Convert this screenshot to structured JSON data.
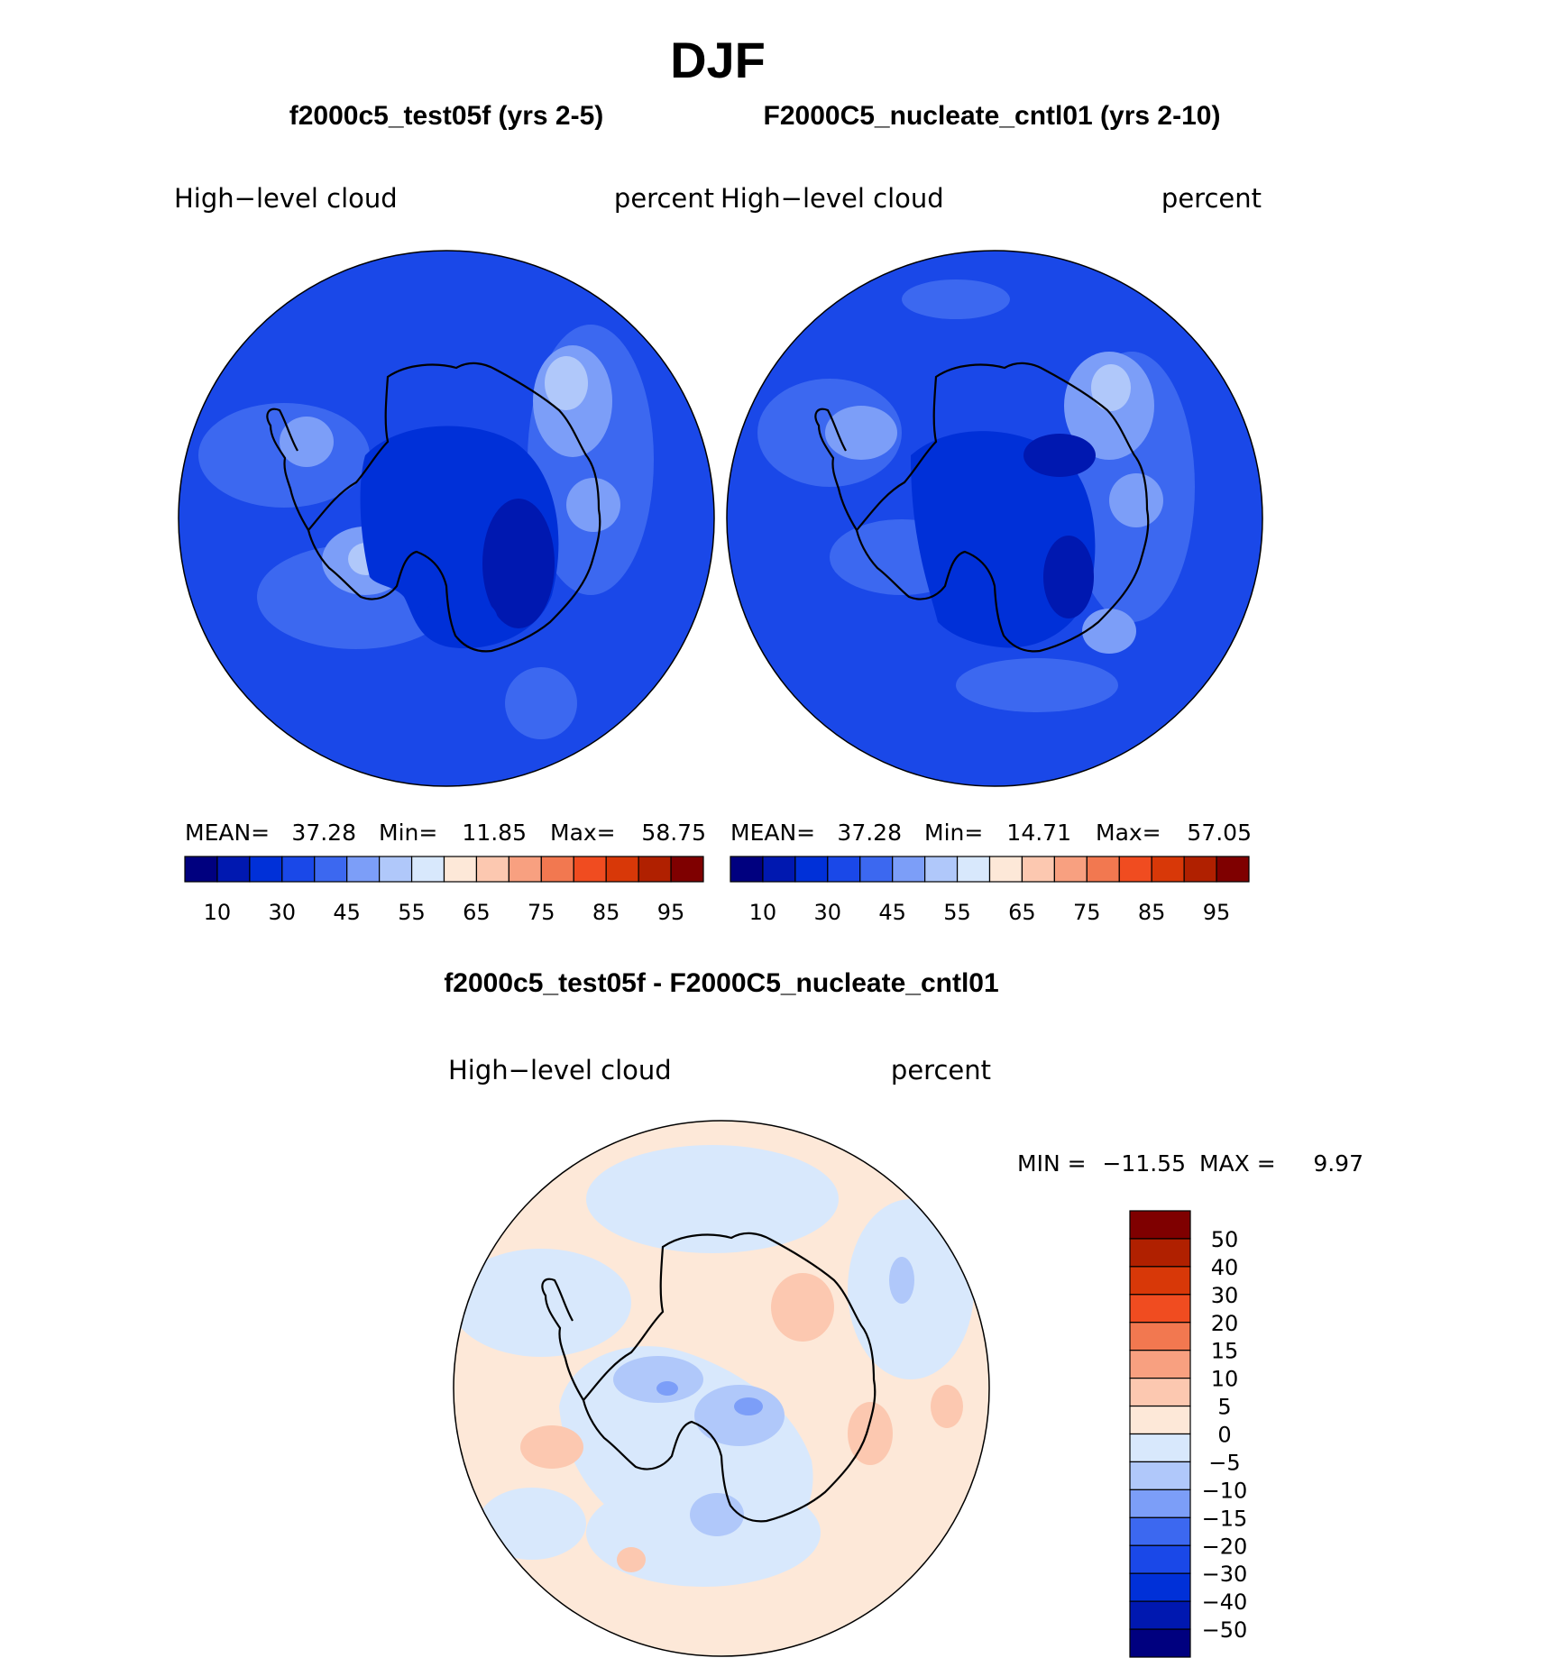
{
  "figure": {
    "title": "DJF",
    "field": "High−level  cloud",
    "units": "percent"
  },
  "panels": [
    {
      "heading": "f2000c5_test05f (yrs 2-5)",
      "stats": {
        "mean_label": "MEAN=",
        "mean": "37.28",
        "min_label": "Min=",
        "min": "11.85",
        "max_label": "Max=",
        "max": "58.75"
      }
    },
    {
      "heading": "F2000C5_nucleate_cntl01 (yrs 2-10)",
      "stats": {
        "mean_label": "MEAN=",
        "mean": "37.28",
        "min_label": "Min=",
        "min": "14.71",
        "max_label": "Max=",
        "max": "57.05"
      }
    }
  ],
  "abs_colorbar": {
    "colors": [
      "#00007f",
      "#0018b0",
      "#0030d8",
      "#1a48e8",
      "#3c68f0",
      "#7c9ef8",
      "#b0c8fa",
      "#d8e8fc",
      "#fde8d8",
      "#fcc8b0",
      "#f8a080",
      "#f27850",
      "#f04c20",
      "#d83808",
      "#b02000",
      "#7f0000"
    ],
    "tick_labels": [
      "10",
      "30",
      "45",
      "55",
      "65",
      "75",
      "85",
      "95"
    ]
  },
  "difference": {
    "heading": "f2000c5_test05f - F2000C5_nucleate_cntl01",
    "stats": {
      "min_label": "MIN  =",
      "min": "−11.55",
      "max_label": "MAX  =",
      "max": "9.97"
    },
    "colorbar": {
      "colors": [
        "#7f0000",
        "#b02000",
        "#d83808",
        "#f04c20",
        "#f27850",
        "#f8a080",
        "#fcc8b0",
        "#fde8d8",
        "#d8e8fc",
        "#b0c8fa",
        "#7c9ef8",
        "#3c68f0",
        "#1a48e8",
        "#0030d8",
        "#0018b0",
        "#00007f"
      ],
      "tick_labels": [
        "50",
        "40",
        "30",
        "20",
        "15",
        "10",
        "5",
        "0",
        "−5",
        "−10",
        "−15",
        "−20",
        "−30",
        "−40",
        "−50"
      ]
    }
  },
  "map_colors": {
    "abs_base": "#1a48e8",
    "abs_mid": "#3c68f0",
    "abs_light": "#7c9ef8",
    "abs_lighter": "#b0c8fa",
    "abs_dark": "#0030d8",
    "abs_darker": "#0018b0",
    "diff_warm": "#fde8d8",
    "diff_cool": "#d8e8fc",
    "diff_warm2": "#fcc8b0",
    "diff_cool2": "#b0c8fa",
    "diff_cool3": "#7c9ef8",
    "coast": "#000000"
  }
}
